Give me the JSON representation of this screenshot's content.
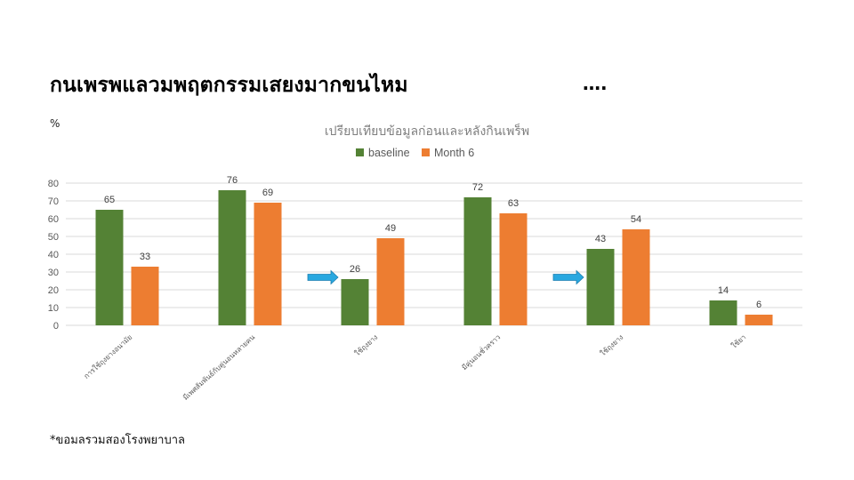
{
  "slide": {
    "title": "กนเพรพแลวมพฤตกรรมเสยงมากขนไหม",
    "ellipsis": "….",
    "unit": "%",
    "footnote": "*ขอมลรวมสองโรงพยาบาล"
  },
  "colors": {
    "baseline": "#548235",
    "month6": "#ed7d31",
    "arrow": "#29a8e0",
    "grid": "#d9d9d9"
  },
  "chart_data": {
    "type": "bar",
    "title": "เปรียบเทียบข้อมูลก่อนและหลังกินเพร็พ",
    "categories": [
      "การใช้ถุงยางอนามัย",
      "มีเพศสัมพันธ์กับคู่นอนหลายคน",
      "ใช้ถุงยาง",
      "มีคู่นอนชั่วคราว",
      "ใช้ถุงยาง",
      "ใช้ยา"
    ],
    "series": [
      {
        "name": "baseline",
        "values": [
          65,
          76,
          26,
          72,
          43,
          14
        ]
      },
      {
        "name": "Month 6",
        "values": [
          33,
          69,
          49,
          63,
          54,
          6
        ]
      }
    ],
    "yticks": [
      0,
      10,
      20,
      30,
      40,
      50,
      60,
      70,
      80
    ],
    "ylim": [
      0,
      80
    ],
    "grid": true,
    "legend": "top",
    "arrows_before_categories": [
      2,
      4
    ]
  }
}
